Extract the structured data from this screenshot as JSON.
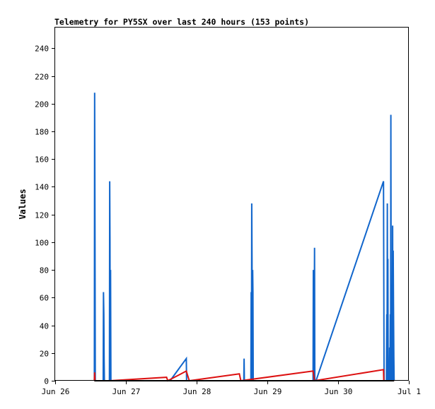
{
  "chart_data": {
    "type": "line",
    "title": "Telemetry for PY5SX over last 240 hours (153 points)",
    "xlabel": "",
    "ylabel": "Values",
    "ylim": [
      0,
      255
    ],
    "xlim": [
      0,
      120
    ],
    "x_unit": "hours since Jun 26 00:00",
    "yticks": [
      0,
      20,
      40,
      60,
      80,
      100,
      120,
      140,
      160,
      180,
      200,
      220,
      240
    ],
    "xticks": [
      {
        "x": 0,
        "label": "Jun 26"
      },
      {
        "x": 24,
        "label": "Jun 27"
      },
      {
        "x": 48,
        "label": "Jun 28"
      },
      {
        "x": 72,
        "label": "Jun 29"
      },
      {
        "x": 96,
        "label": "Jun 30"
      },
      {
        "x": 120,
        "label": "Jul 1"
      }
    ],
    "grid": false,
    "series": [
      {
        "color": "#1166cc",
        "points": [
          [
            13.3,
            0
          ],
          [
            13.4,
            208
          ],
          [
            13.5,
            104
          ],
          [
            13.6,
            0
          ],
          [
            16.3,
            0
          ],
          [
            16.4,
            64
          ],
          [
            16.5,
            48
          ],
          [
            16.6,
            16
          ],
          [
            16.7,
            0
          ],
          [
            18.4,
            0
          ],
          [
            18.5,
            144
          ],
          [
            18.6,
            100
          ],
          [
            18.7,
            0
          ],
          [
            18.8,
            80
          ],
          [
            18.9,
            0
          ],
          [
            39.0,
            0
          ],
          [
            44.5,
            16
          ],
          [
            44.6,
            0
          ],
          [
            64.0,
            0
          ],
          [
            64.1,
            16
          ],
          [
            64.2,
            0
          ],
          [
            66.4,
            0
          ],
          [
            66.5,
            64
          ],
          [
            66.6,
            0
          ],
          [
            66.7,
            128
          ],
          [
            66.8,
            88
          ],
          [
            66.9,
            0
          ],
          [
            67.0,
            80
          ],
          [
            67.1,
            64
          ],
          [
            67.2,
            0
          ],
          [
            87.5,
            0
          ],
          [
            87.6,
            80
          ],
          [
            87.7,
            40
          ],
          [
            87.8,
            0
          ],
          [
            87.9,
            48
          ],
          [
            88.0,
            96
          ],
          [
            88.1,
            0
          ],
          [
            88.5,
            0
          ],
          [
            111.4,
            144
          ],
          [
            111.5,
            72
          ],
          [
            111.6,
            0
          ],
          [
            112.4,
            0
          ],
          [
            112.5,
            48
          ],
          [
            112.6,
            0
          ],
          [
            112.7,
            128
          ],
          [
            112.8,
            40
          ],
          [
            112.9,
            88
          ],
          [
            113.0,
            0
          ],
          [
            113.4,
            0
          ],
          [
            113.5,
            24
          ],
          [
            113.6,
            0
          ],
          [
            113.7,
            48
          ],
          [
            113.8,
            0
          ],
          [
            113.9,
            192
          ],
          [
            114.0,
            48
          ],
          [
            114.1,
            0
          ],
          [
            114.4,
            0
          ],
          [
            114.5,
            112
          ],
          [
            114.6,
            0
          ],
          [
            114.7,
            94
          ],
          [
            114.8,
            56
          ],
          [
            114.9,
            18
          ],
          [
            115.0,
            0
          ]
        ]
      },
      {
        "color": "#dd1111",
        "points": [
          [
            13.3,
            0
          ],
          [
            13.4,
            6
          ],
          [
            13.5,
            0
          ],
          [
            18.5,
            0
          ],
          [
            37.8,
            2.5
          ],
          [
            38.2,
            0
          ],
          [
            44.5,
            7
          ],
          [
            45.5,
            0
          ],
          [
            62.5,
            5
          ],
          [
            63.0,
            0
          ],
          [
            87.5,
            7
          ],
          [
            88.0,
            0
          ],
          [
            111.4,
            8
          ],
          [
            111.5,
            0
          ],
          [
            114.5,
            0
          ],
          [
            115.0,
            0
          ]
        ]
      },
      {
        "color": "#000000",
        "points": [
          [
            13.3,
            0
          ],
          [
            115.0,
            0
          ]
        ]
      }
    ]
  }
}
